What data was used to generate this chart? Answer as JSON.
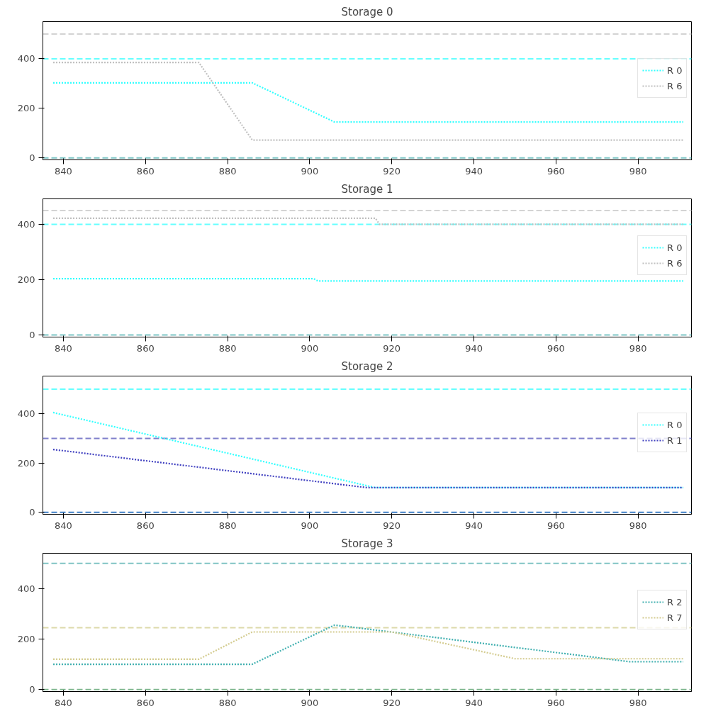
{
  "chart_data": [
    {
      "type": "line",
      "title": "Storage 0",
      "xlim": [
        835,
        993
      ],
      "xticks": [
        840,
        860,
        880,
        900,
        920,
        940,
        960,
        980
      ],
      "ylim": [
        -8,
        550
      ],
      "yticks": [
        0,
        200,
        400
      ],
      "grid": false,
      "legend": "right",
      "line_style": "dotted",
      "marker": "none",
      "series": [
        {
          "name": "R 0",
          "color": "#33ffff",
          "x": [
            837.5,
            886,
            906,
            991
          ],
          "values": [
            303,
            303,
            145,
            145
          ]
        },
        {
          "name": "R 6",
          "color": "#c0c0c0",
          "x": [
            837.5,
            873,
            886,
            991
          ],
          "values": [
            385,
            385,
            72,
            72
          ]
        }
      ],
      "ref_lines": [
        {
          "axis": "y",
          "value": 500,
          "color": "#d3d3d3",
          "line_style": "dashed"
        },
        {
          "axis": "y",
          "value": 400,
          "color": "#66ffff",
          "line_style": "dashed"
        },
        {
          "axis": "y",
          "value": 0,
          "color": "#80c8c8",
          "line_style": "dashed"
        }
      ]
    },
    {
      "type": "line",
      "title": "Storage 1",
      "xlim": [
        835,
        993
      ],
      "xticks": [
        840,
        860,
        880,
        900,
        920,
        940,
        960,
        980
      ],
      "ylim": [
        -8,
        492
      ],
      "yticks": [
        0,
        200,
        400
      ],
      "grid": false,
      "legend": "right",
      "line_style": "dotted",
      "marker": "none",
      "series": [
        {
          "name": "R 0",
          "color": "#33ffff",
          "x": [
            837.5,
            901,
            902,
            991
          ],
          "values": [
            203,
            203,
            195,
            195
          ]
        },
        {
          "name": "R 6",
          "color": "#c0c0c0",
          "x": [
            837.5,
            916,
            917,
            991
          ],
          "values": [
            422,
            422,
            400,
            400
          ]
        }
      ],
      "ref_lines": [
        {
          "axis": "y",
          "value": 450,
          "color": "#d3d3d3",
          "line_style": "dashed"
        },
        {
          "axis": "y",
          "value": 400,
          "color": "#66ffff",
          "line_style": "dashed"
        },
        {
          "axis": "y",
          "value": 0,
          "color": "#80c8c8",
          "line_style": "dashed"
        }
      ]
    },
    {
      "type": "line",
      "title": "Storage 2",
      "xlim": [
        835,
        993
      ],
      "xticks": [
        840,
        860,
        880,
        900,
        920,
        940,
        960,
        980
      ],
      "ylim": [
        -8,
        553
      ],
      "yticks": [
        0,
        200,
        400
      ],
      "grid": false,
      "legend": "right",
      "line_style": "dotted",
      "marker": "none",
      "series": [
        {
          "name": "R 0",
          "color": "#33ffff",
          "x": [
            837.5,
            916,
            991
          ],
          "values": [
            405,
            100,
            100
          ]
        },
        {
          "name": "R 1",
          "color": "#4040c0",
          "x": [
            837.5,
            914,
            991
          ],
          "values": [
            255,
            100,
            100
          ]
        }
      ],
      "ref_lines": [
        {
          "axis": "y",
          "value": 500,
          "color": "#66ffff",
          "line_style": "dashed"
        },
        {
          "axis": "y",
          "value": 300,
          "color": "#8080cc",
          "line_style": "dashed"
        },
        {
          "axis": "y",
          "value": 0,
          "color": "#4080c8",
          "line_style": "dashed"
        }
      ]
    },
    {
      "type": "line",
      "title": "Storage 3",
      "xlim": [
        835,
        993
      ],
      "xticks": [
        840,
        860,
        880,
        900,
        920,
        940,
        960,
        980
      ],
      "ylim": [
        -8,
        540
      ],
      "yticks": [
        0,
        200,
        400
      ],
      "grid": false,
      "legend": "right",
      "line_style": "dotted",
      "marker": "none",
      "series": [
        {
          "name": "R 2",
          "color": "#40b0b0",
          "x": [
            837.5,
            886,
            906,
            910,
            978,
            991
          ],
          "values": [
            100,
            100,
            255,
            248,
            110,
            110
          ]
        },
        {
          "name": "R 7",
          "color": "#d4cc90",
          "x": [
            837.5,
            873,
            886,
            920,
            950,
            991
          ],
          "values": [
            120,
            120,
            228,
            228,
            122,
            122
          ]
        }
      ],
      "ref_lines": [
        {
          "axis": "y",
          "value": 500,
          "color": "#80c4c4",
          "line_style": "dashed"
        },
        {
          "axis": "y",
          "value": 245,
          "color": "#ddd9aa",
          "line_style": "dashed"
        },
        {
          "axis": "y",
          "value": 0,
          "color": "#80b890",
          "line_style": "dashed"
        }
      ]
    }
  ]
}
